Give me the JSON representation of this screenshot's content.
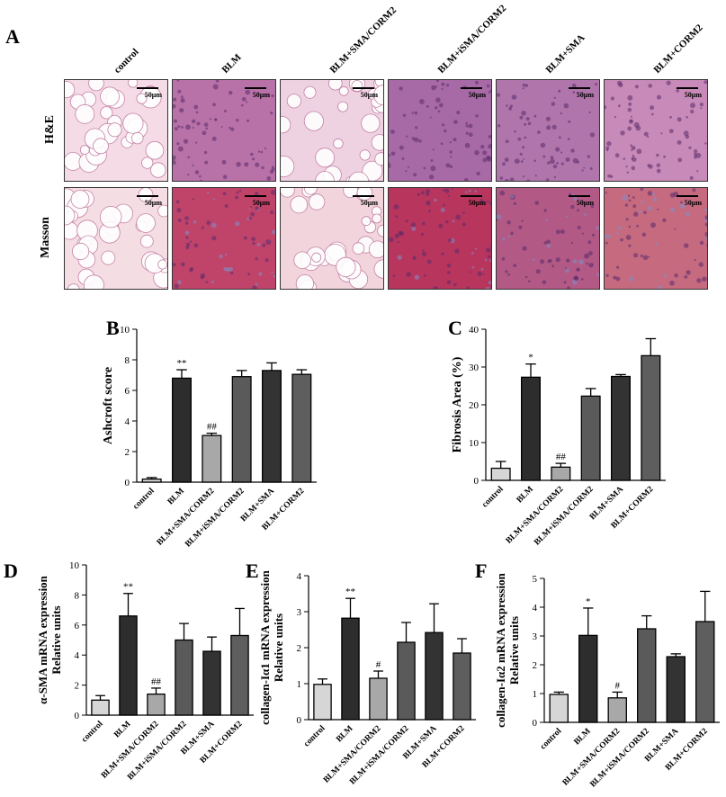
{
  "panel_labels": {
    "a": "A",
    "b": "B",
    "c": "C",
    "d": "D",
    "e": "E",
    "f": "F"
  },
  "histology": {
    "columns": [
      "control",
      "BLM",
      "BLM+SMA/CORM2",
      "BLM+iSMA/CORM2",
      "BLM+SMA",
      "BLM+CORM2"
    ],
    "rows": [
      {
        "label": "H&E",
        "scale_labels": [
          "50μm",
          "50μm",
          "50μm",
          "50μm",
          "50μm",
          "50μm"
        ],
        "tints": [
          "#f4dbe6",
          "#b872a8",
          "#efd2e2",
          "#a86aa6",
          "#b075ab",
          "#c88ab8"
        ]
      },
      {
        "label": "Masson",
        "scale_labels": [
          "50μm",
          "50μm",
          "50μm",
          "50μm",
          "50μm",
          "50μm"
        ],
        "tints": [
          "#f5dde4",
          "#c0446a",
          "#f2d4dc",
          "#b8355e",
          "#b25a85",
          "#c66a80"
        ]
      }
    ]
  },
  "chart_data": [
    {
      "id": "B",
      "type": "bar",
      "ylabel": "Ashcroft score",
      "ylim": [
        0,
        10
      ],
      "yticks": [
        0,
        2,
        4,
        6,
        8,
        10
      ],
      "categories": [
        "control",
        "BLM",
        "BLM+SMA/CORM2",
        "BLM+iSMA/CORM2",
        "BLM+SMA",
        "BLM+CORM2"
      ],
      "values": [
        0.2,
        6.8,
        3.05,
        6.9,
        7.3,
        7.05
      ],
      "errors": [
        0.1,
        0.55,
        0.15,
        0.4,
        0.5,
        0.3
      ],
      "annotations": [
        "",
        "**",
        "##",
        "",
        "",
        ""
      ]
    },
    {
      "id": "C",
      "type": "bar",
      "ylabel": "Fibrosis Area (%)",
      "ylim": [
        0,
        40
      ],
      "yticks": [
        0,
        10,
        20,
        30,
        40
      ],
      "categories": [
        "control",
        "BLM",
        "BLM+SMA/CORM2",
        "BLM+iSMA/CORM2",
        "BLM+SMA",
        "BLM+CORM2"
      ],
      "values": [
        3.2,
        27.3,
        3.5,
        22.3,
        27.5,
        33.0
      ],
      "errors": [
        1.8,
        3.5,
        1.0,
        2.0,
        0.5,
        4.5
      ],
      "annotations": [
        "",
        "*",
        "##",
        "",
        "",
        ""
      ]
    },
    {
      "id": "D",
      "type": "bar",
      "ylabel": "α-SMA mRNA expression",
      "ylabel2": "Relative units",
      "ylim": [
        0,
        10
      ],
      "yticks": [
        0,
        2,
        4,
        6,
        8,
        10
      ],
      "categories": [
        "control",
        "BLM",
        "BLM+SMA/CORM2",
        "BLM+iSMA/CORM2",
        "BLM+SMA",
        "BLM+CORM2"
      ],
      "values": [
        1.0,
        6.6,
        1.4,
        5.0,
        4.25,
        5.3
      ],
      "errors": [
        0.3,
        1.5,
        0.4,
        1.1,
        0.95,
        1.8
      ],
      "annotations": [
        "",
        "**",
        "##",
        "",
        "",
        ""
      ]
    },
    {
      "id": "E",
      "type": "bar",
      "ylabel": "collagen-Iα1 mRNA expression",
      "ylabel2": "Relative units",
      "ylim": [
        0,
        4
      ],
      "yticks": [
        0,
        1,
        2,
        3,
        4
      ],
      "categories": [
        "control",
        "BLM",
        "BLM+SMA/CORM2",
        "BLM+iSMA/CORM2",
        "BLM+SMA",
        "BLM+CORM2"
      ],
      "values": [
        0.98,
        2.82,
        1.15,
        2.15,
        2.42,
        1.85
      ],
      "errors": [
        0.15,
        0.55,
        0.2,
        0.55,
        0.8,
        0.4
      ],
      "annotations": [
        "",
        "**",
        "#",
        "",
        "",
        ""
      ]
    },
    {
      "id": "F",
      "type": "bar",
      "ylabel": "collagen-Iα2 mRNA expression",
      "ylabel2": "Relative units",
      "ylim": [
        0,
        5
      ],
      "yticks": [
        0,
        1,
        2,
        3,
        4,
        5
      ],
      "categories": [
        "control",
        "BLM",
        "BLM+SMA/CORM2",
        "BLM+iSMA/CORM2",
        "BLM+SMA",
        "BLM+CORM2"
      ],
      "values": [
        0.97,
        3.02,
        0.85,
        3.25,
        2.28,
        3.5
      ],
      "errors": [
        0.08,
        0.95,
        0.2,
        0.45,
        0.1,
        1.05
      ],
      "annotations": [
        "",
        "*",
        "#",
        "",
        "",
        ""
      ]
    }
  ],
  "bar_colors": [
    "#d6d6d6",
    "#2d2d2d",
    "#a8a8a8",
    "#5a5a5a",
    "#333333",
    "#5e5e5e"
  ]
}
